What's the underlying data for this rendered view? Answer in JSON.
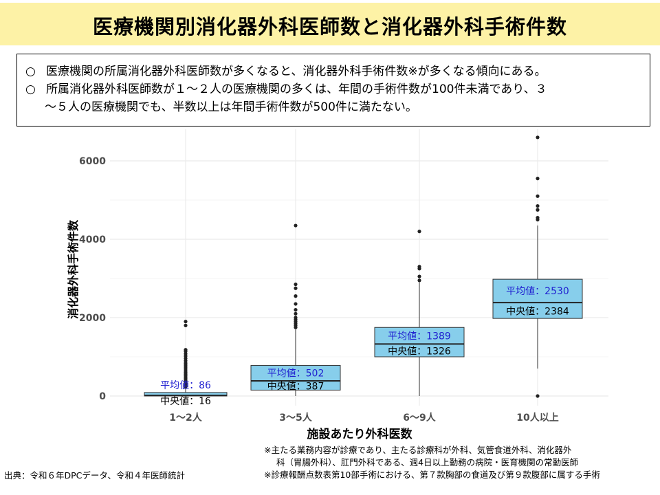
{
  "title": "医療機関別消化器外科医師数と消化器外科手術件数",
  "summary": {
    "bullet_mark": "○",
    "line1": "医療機関の所属消化器外科医師数が多くなると、消化器外科手術件数※が多くなる傾向にある。",
    "line2": "所属消化器外科医師数が１～２人の医療機関の多くは、年間の手術件数が100件未満であり、３",
    "line3": "～５人の医療機関でも、半数以上は年間手術件数が500件に満たない。"
  },
  "chart_data": {
    "type": "box",
    "xlabel": "施設あたり外科医数",
    "ylabel": "消化器外科手術件数",
    "ylim": [
      -250,
      6650
    ],
    "yticks": [
      0,
      2000,
      4000,
      6000
    ],
    "grid": true,
    "categories": [
      "1～2人",
      "3～5人",
      "6～9人",
      "10人以上"
    ],
    "groups": [
      {
        "category": "1～2人",
        "q1": 0,
        "q3": 90,
        "median": 16,
        "mean": 86,
        "whisker_low": 0,
        "whisker_high": 220,
        "outliers": [
          240,
          270,
          300,
          330,
          360,
          400,
          440,
          480,
          520,
          560,
          600,
          640,
          690,
          740,
          790,
          840,
          900,
          960,
          1020,
          1080,
          1140,
          1180,
          1800,
          1900
        ],
        "mean_label": "平均値：86",
        "median_label": "中央値：16"
      },
      {
        "category": "3～5人",
        "q1": 150,
        "q3": 780,
        "median": 387,
        "mean": 502,
        "whisker_low": 0,
        "whisker_high": 1700,
        "outliers": [
          1750,
          1800,
          1850,
          1900,
          1950,
          2000,
          2100,
          2200,
          2350,
          2550,
          2750,
          2850,
          4350
        ],
        "mean_label": "平均値：502",
        "median_label": "中央値：387"
      },
      {
        "category": "6～9人",
        "q1": 1000,
        "q3": 1750,
        "median": 1326,
        "mean": 1389,
        "whisker_low": 0,
        "whisker_high": 2900,
        "outliers": [
          2950,
          3050,
          3250,
          3300,
          4200
        ],
        "mean_label": "平均値：1389",
        "median_label": "中央値：1326"
      },
      {
        "category": "10人以上",
        "q1": 1980,
        "q3": 2980,
        "median": 2384,
        "mean": 2530,
        "whisker_low": 700,
        "whisker_high": 4350,
        "outliers": [
          0,
          4500,
          4550,
          4750,
          4850,
          5100,
          5550,
          6600
        ],
        "mean_label": "平均値：2530",
        "median_label": "中央値：2384"
      }
    ],
    "colors": {
      "box_fill": "#87ceeb",
      "mean_text": "#1f1fd0",
      "median_text": "#000000",
      "grid": "#ebebeb"
    }
  },
  "notes": {
    "note1": "※主たる業務内容が診療であり、主たる診療科が外科、気管食道外科、消化器外",
    "note2": "科（胃腸外科）、肛門外科である、週4日以上勤務の病院・医育機関の常勤医師",
    "note3": "※診療報酬点数表第10部手術における、第７款胸部の食道及び第９款腹部に属する手術",
    "source": "出典：令和６年DPCデータ、令和４年医師統計"
  }
}
